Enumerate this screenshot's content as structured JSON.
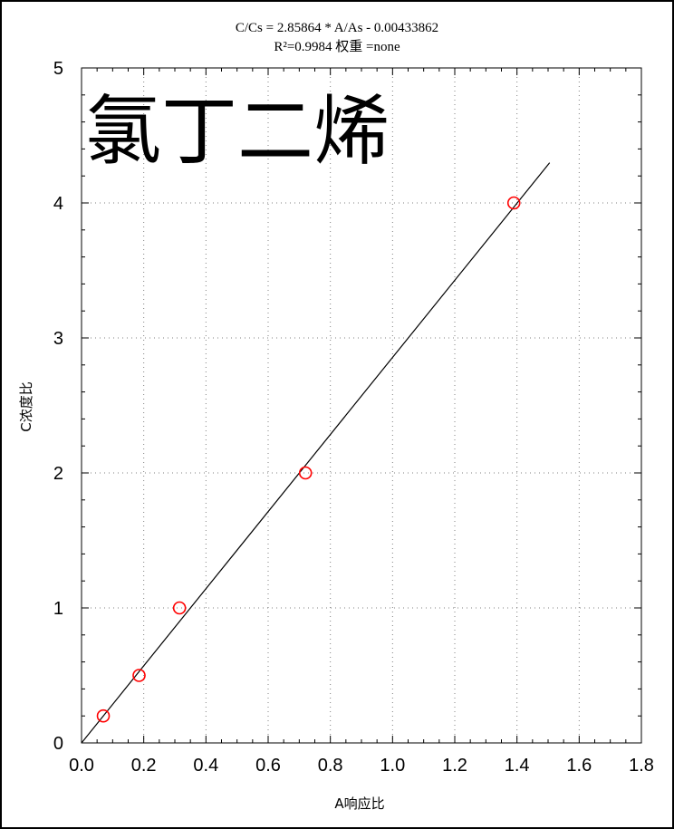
{
  "chart_data": {
    "type": "scatter",
    "title": "C/Cs = 2.85864 * A/As - 0.00433862",
    "subtitle": "R²=0.9984 权重 =none",
    "annotation": "氯丁二烯",
    "xlabel": "A响应比",
    "ylabel": "C浓度比",
    "xlim": [
      0,
      1.8
    ],
    "ylim": [
      0,
      5
    ],
    "xticks": [
      "0.0",
      "0.2",
      "0.4",
      "0.6",
      "0.8",
      "1.0",
      "1.2",
      "1.4",
      "1.6",
      "1.8"
    ],
    "yticks": [
      "0",
      "1",
      "2",
      "3",
      "4",
      "5"
    ],
    "grid": true,
    "points": [
      {
        "x": 0.07,
        "y": 0.2
      },
      {
        "x": 0.185,
        "y": 0.5
      },
      {
        "x": 0.315,
        "y": 1.0
      },
      {
        "x": 0.72,
        "y": 2.0
      },
      {
        "x": 1.39,
        "y": 4.0
      }
    ],
    "fit_line": {
      "slope": 2.85864,
      "intercept": -0.00433862,
      "x_range": [
        0,
        1.505
      ]
    },
    "colors": {
      "points": "#ff0000",
      "line": "#000000",
      "grid": "#808080"
    }
  }
}
